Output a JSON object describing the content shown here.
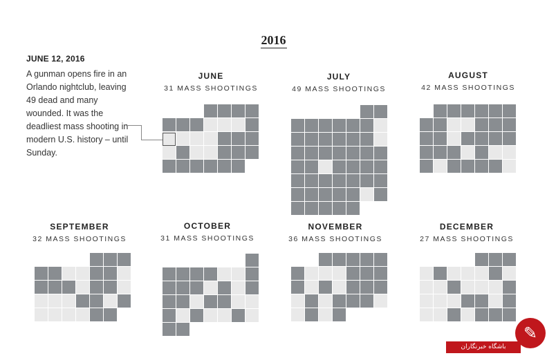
{
  "title": "2016",
  "annotation": {
    "date": "JUNE 12, 2016",
    "text": "A gunman opens fire in an Orlando nightclub, leaving 49 dead and many wounded. It was the deadliest mass shooting in modern U.S. history – until Sunday."
  },
  "colors": {
    "shooting": "#898d91",
    "no_shooting": "#e9e9e9",
    "badge": "#c0171c"
  },
  "chart_data": {
    "type": "heatmap",
    "title": "2016",
    "encoding": "Calendar grid per month; each square is a day, dark = day with a mass shooting, light = day without.",
    "months": [
      {
        "name": "JUNE",
        "count_label": "31 MASS SHOOTINGS",
        "first_weekday": 3,
        "days": [
          1,
          1,
          1,
          1,
          1,
          1,
          1,
          0,
          0,
          0,
          1,
          0,
          0,
          0,
          0,
          1,
          1,
          1,
          0,
          1,
          0,
          0,
          1,
          1,
          1,
          1,
          1,
          1,
          1,
          1,
          1
        ]
      },
      {
        "name": "JULY",
        "count_label": "49 MASS SHOOTINGS",
        "first_weekday": 5,
        "days": [
          1,
          1,
          1,
          1,
          1,
          1,
          1,
          1,
          0,
          1,
          1,
          1,
          1,
          1,
          1,
          0,
          1,
          1,
          1,
          1,
          1,
          1,
          1,
          1,
          1,
          0,
          1,
          1,
          1,
          1,
          1,
          1,
          1,
          1,
          1,
          1,
          1,
          1,
          1,
          1,
          1,
          1,
          0,
          1,
          1,
          1,
          1,
          1,
          1
        ]
      },
      {
        "name": "AUGUST",
        "count_label": "42 MASS SHOOTINGS",
        "first_weekday": 1,
        "days": [
          1,
          1,
          1,
          1,
          1,
          1,
          1,
          1,
          0,
          0,
          1,
          1,
          1,
          1,
          1,
          0,
          1,
          1,
          1,
          1,
          1,
          1,
          1,
          0,
          1,
          0,
          0,
          1,
          0,
          1,
          1,
          1,
          1,
          0
        ]
      },
      {
        "name": "SEPTEMBER",
        "count_label": "32 MASS SHOOTINGS",
        "first_weekday": 4,
        "days": [
          1,
          1,
          1,
          1,
          1,
          0,
          0,
          1,
          1,
          0,
          1,
          1,
          1,
          0,
          1,
          1,
          0,
          0,
          0,
          0,
          1,
          1,
          0,
          1,
          0,
          0,
          0,
          0,
          1,
          1
        ]
      },
      {
        "name": "OCTOBER",
        "count_label": "31 MASS SHOOTINGS",
        "first_weekday": 6,
        "days": [
          1,
          1,
          1,
          1,
          1,
          0,
          0,
          1,
          1,
          1,
          1,
          0,
          1,
          0,
          1,
          1,
          1,
          0,
          1,
          1,
          0,
          0,
          1,
          0,
          1,
          0,
          0,
          1,
          0,
          1,
          1
        ]
      },
      {
        "name": "NOVEMBER",
        "count_label": "36 MASS SHOOTINGS",
        "first_weekday": 2,
        "days": [
          1,
          1,
          1,
          1,
          1,
          1,
          0,
          0,
          0,
          1,
          1,
          1,
          1,
          0,
          1,
          0,
          1,
          1,
          1,
          0,
          1,
          0,
          1,
          1,
          1,
          0,
          0,
          1,
          0,
          1
        ]
      },
      {
        "name": "DECEMBER",
        "count_label": "27 MASS SHOOTINGS",
        "first_weekday": 4,
        "days": [
          1,
          1,
          1,
          0,
          1,
          0,
          0,
          0,
          1,
          0,
          0,
          0,
          1,
          0,
          0,
          0,
          1,
          0,
          0,
          0,
          1,
          1,
          0,
          1,
          0,
          0,
          1,
          0,
          1,
          1,
          1
        ]
      }
    ]
  },
  "badge": {
    "text": "باشگاه خبرنگاران"
  }
}
